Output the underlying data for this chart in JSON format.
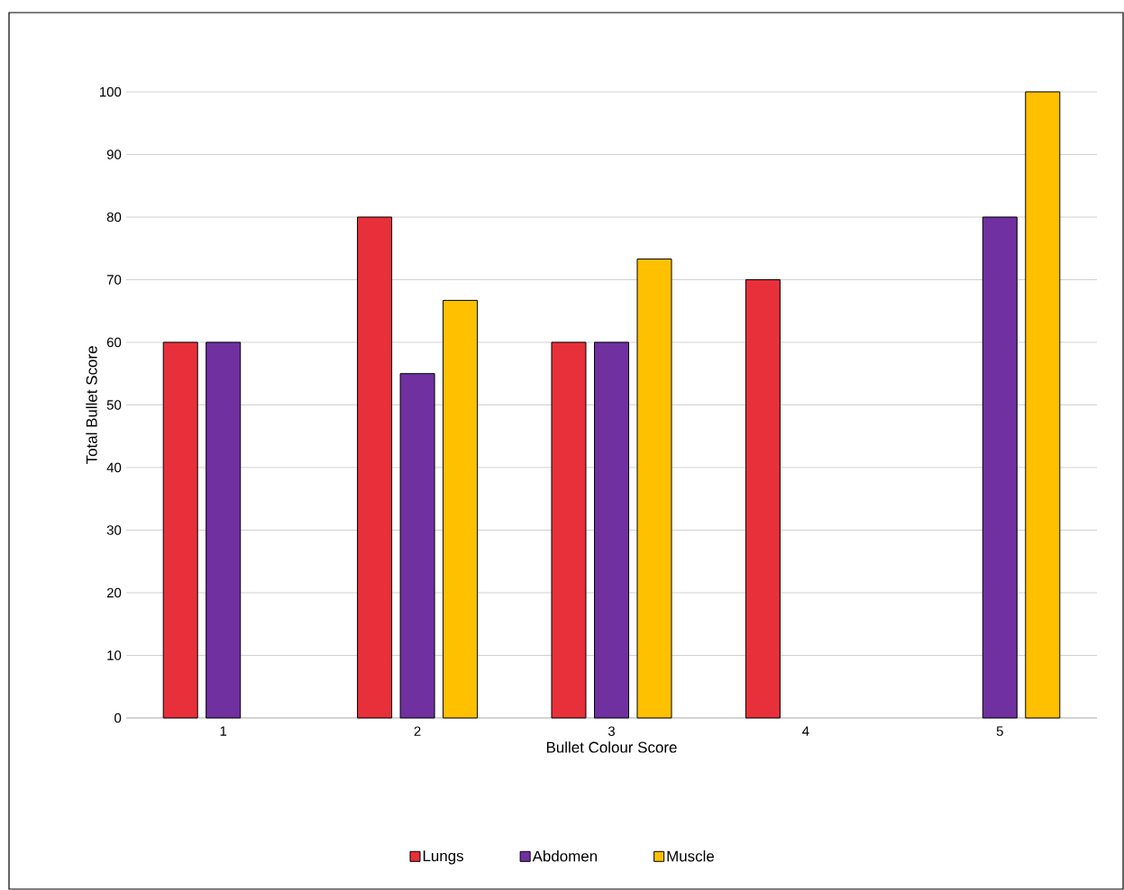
{
  "chart_data": {
    "type": "bar",
    "xlabel": "Bullet Colour Score",
    "ylabel": "Total Bullet Score",
    "categories": [
      "1",
      "2",
      "3",
      "4",
      "5"
    ],
    "series": [
      {
        "name": "Lungs",
        "color": "#e8303a",
        "values": [
          60,
          80,
          60,
          70,
          null
        ]
      },
      {
        "name": "Abdomen",
        "color": "#7030a0",
        "values": [
          60,
          55,
          60,
          null,
          80
        ]
      },
      {
        "name": "Muscle",
        "color": "#ffc000",
        "values": [
          null,
          66.7,
          73.3,
          null,
          100
        ]
      }
    ],
    "ylim": [
      0,
      100
    ],
    "yticks": [
      0,
      10,
      20,
      30,
      40,
      50,
      60,
      70,
      80,
      90,
      100
    ],
    "grid": "y",
    "legend": "bottom"
  }
}
